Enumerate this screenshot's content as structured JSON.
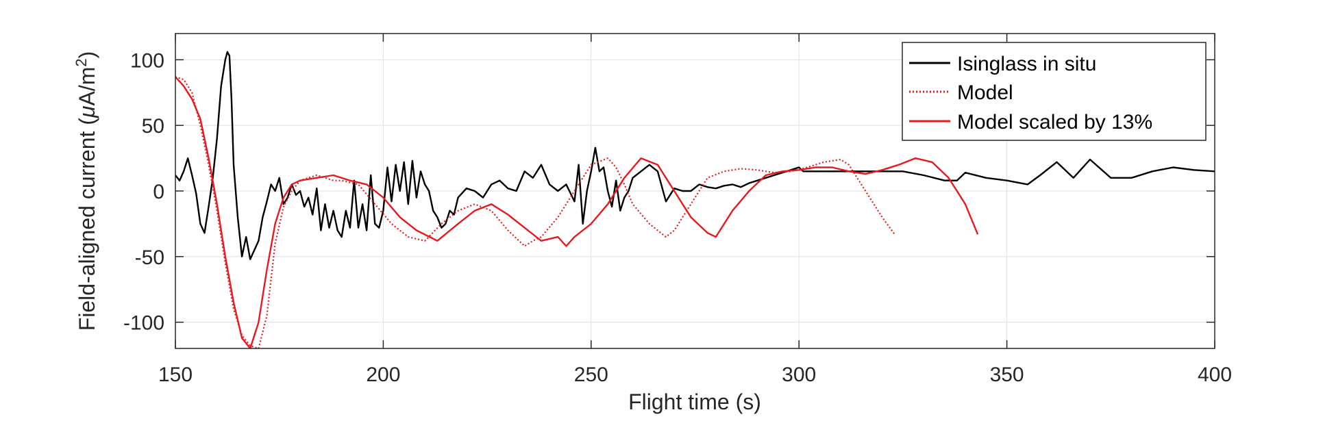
{
  "chart_data": {
    "type": "line",
    "title": "",
    "xlabel": "Flight time (s)",
    "ylabel_main": "Field-aligned current (",
    "ylabel_mu": "μ",
    "ylabel_unit": "A/m",
    "ylabel_exp": "2",
    "ylabel_close": ")",
    "xlim": [
      150,
      400
    ],
    "ylim": [
      -120,
      120
    ],
    "xticks": [
      150,
      200,
      250,
      300,
      350,
      400
    ],
    "yticks": [
      -100,
      -50,
      0,
      50,
      100
    ],
    "xtick_labels": [
      "150",
      "200",
      "250",
      "300",
      "350",
      "400"
    ],
    "ytick_labels": [
      "-100",
      "-50",
      "0",
      "50",
      "100"
    ],
    "grid": true,
    "legend_placement": "top-right",
    "series": [
      {
        "name": "Isinglass in situ",
        "color": "#000000",
        "style": "solid",
        "x": [
          150,
          151,
          152,
          153,
          154,
          155,
          156,
          157,
          158,
          159,
          160,
          161,
          162,
          162.5,
          163,
          163.5,
          164,
          165,
          166,
          167,
          168,
          169,
          170,
          171,
          172,
          173,
          174,
          175,
          176,
          177,
          178,
          179,
          180,
          181,
          182,
          183,
          184,
          185,
          186,
          187,
          188,
          189,
          190,
          191,
          192,
          193,
          194,
          195,
          196,
          197,
          198,
          199,
          200,
          201,
          202,
          203,
          204,
          205,
          206,
          207,
          208,
          209,
          210,
          211,
          212,
          213,
          214,
          215,
          216,
          217,
          218,
          220,
          222,
          224,
          226,
          228,
          230,
          232,
          234,
          236,
          238,
          240,
          242,
          244,
          246,
          247,
          248,
          249,
          250,
          251,
          252,
          253,
          254,
          255,
          256,
          257,
          258,
          259,
          260,
          262,
          264,
          266,
          268,
          270,
          272,
          274,
          276,
          278,
          280,
          282,
          284,
          286,
          288,
          290,
          292,
          294,
          296,
          298,
          300,
          301,
          305,
          310,
          315,
          320,
          325,
          330,
          335,
          338,
          340,
          345,
          350,
          355,
          358,
          362,
          366,
          370,
          375,
          380,
          385,
          390,
          395,
          400
        ],
        "y": [
          12,
          8,
          15,
          25,
          12,
          -2,
          -25,
          -32,
          -12,
          10,
          40,
          80,
          100,
          106,
          103,
          70,
          20,
          -20,
          -50,
          -35,
          -52,
          -45,
          -38,
          -20,
          -8,
          5,
          0,
          10,
          -10,
          -5,
          5,
          -3,
          0,
          -12,
          -5,
          -18,
          2,
          -30,
          -10,
          -28,
          -15,
          -30,
          -35,
          -15,
          -28,
          8,
          -28,
          -10,
          -30,
          12,
          -25,
          -28,
          -15,
          18,
          -8,
          20,
          0,
          22,
          -10,
          23,
          -5,
          15,
          5,
          0,
          -15,
          -20,
          -28,
          -25,
          -15,
          -18,
          -5,
          2,
          0,
          -5,
          5,
          8,
          2,
          0,
          15,
          10,
          20,
          5,
          0,
          5,
          -8,
          20,
          -25,
          0,
          15,
          33,
          15,
          18,
          0,
          -12,
          8,
          -15,
          -5,
          0,
          10,
          15,
          20,
          15,
          -8,
          2,
          0,
          0,
          5,
          3,
          2,
          4,
          5,
          3,
          6,
          8,
          10,
          12,
          14,
          16,
          18,
          15,
          15,
          15,
          15,
          15,
          15,
          12,
          8,
          8,
          14,
          10,
          8,
          5,
          12,
          22,
          10,
          24,
          10,
          10,
          15,
          18,
          16,
          15
        ]
      },
      {
        "name": "Model",
        "color": "#e8191e",
        "style": "dotted",
        "x": [
          150,
          152,
          154,
          156,
          158,
          160,
          162,
          164,
          166,
          168,
          170,
          172,
          174,
          176,
          178,
          180,
          182,
          184,
          186,
          188,
          190,
          194,
          198,
          202,
          206,
          210,
          214,
          218,
          222,
          226,
          230,
          234,
          236,
          238,
          242,
          246,
          250,
          254,
          256,
          258,
          260,
          264,
          268,
          270,
          272,
          274,
          278,
          282,
          286,
          290,
          294,
          298,
          302,
          306,
          310,
          312,
          316,
          320,
          323
        ],
        "y": [
          87,
          85,
          75,
          50,
          20,
          -15,
          -55,
          -90,
          -110,
          -118,
          -120,
          -95,
          -40,
          -12,
          0,
          8,
          10,
          12,
          10,
          8,
          8,
          5,
          -10,
          -25,
          -35,
          -38,
          -25,
          -15,
          -10,
          -15,
          -30,
          -42,
          -38,
          -35,
          -20,
          0,
          20,
          25,
          18,
          5,
          -10,
          -25,
          -35,
          -30,
          -20,
          -10,
          10,
          15,
          17,
          16,
          14,
          15,
          18,
          22,
          24,
          20,
          0,
          -20,
          -33
        ]
      },
      {
        "name": "Model scaled by 13%",
        "color": "#e8191e",
        "style": "solid",
        "x": [
          150,
          152,
          154,
          156,
          158,
          160,
          162,
          164,
          166,
          168,
          170,
          172,
          174,
          176,
          178,
          180,
          184,
          188,
          192,
          196,
          200,
          204,
          208,
          213,
          218,
          222,
          226,
          230,
          234,
          238,
          242,
          244,
          246,
          250,
          254,
          258,
          262,
          266,
          270,
          274,
          278,
          280,
          284,
          288,
          292,
          296,
          300,
          304,
          308,
          312,
          316,
          320,
          324,
          328,
          332,
          336,
          340,
          343
        ],
        "y": [
          87,
          80,
          70,
          55,
          25,
          -10,
          -50,
          -85,
          -112,
          -120,
          -100,
          -60,
          -25,
          -5,
          5,
          8,
          10,
          12,
          8,
          5,
          -5,
          -20,
          -30,
          -38,
          -25,
          -15,
          -10,
          -18,
          -28,
          -38,
          -35,
          -42,
          -35,
          -25,
          -10,
          10,
          25,
          20,
          0,
          -20,
          -32,
          -35,
          -15,
          0,
          12,
          15,
          16,
          18,
          18,
          15,
          13,
          16,
          20,
          25,
          22,
          10,
          -10,
          -33
        ]
      }
    ]
  }
}
